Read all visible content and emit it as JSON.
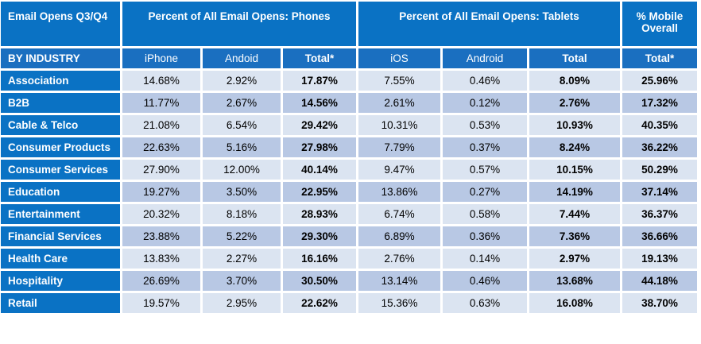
{
  "header": {
    "title": "Email Opens Q3/Q4",
    "phones_group": "Percent of All Email Opens: Phones",
    "tablets_group": "Percent of All Email Opens: Tablets",
    "mobile_overall_line1": "% Mobile",
    "mobile_overall_line2": "Overall"
  },
  "subheader": {
    "industry_label": "BY INDUSTRY",
    "iphone": "iPhone",
    "android_phone": "Andoid",
    "phones_total": "Total*",
    "ios": "iOS",
    "android_tablet": "Android",
    "tablets_total": "Total",
    "mobile_total": "Total*"
  },
  "rows": [
    {
      "industry": "Association",
      "iphone": "14.68%",
      "android_phone": "2.92%",
      "phones_total": "17.87%",
      "ios": "7.55%",
      "android_tablet": "0.46%",
      "tablets_total": "8.09%",
      "mobile_total": "25.96%"
    },
    {
      "industry": "B2B",
      "iphone": "11.77%",
      "android_phone": "2.67%",
      "phones_total": "14.56%",
      "ios": "2.61%",
      "android_tablet": "0.12%",
      "tablets_total": "2.76%",
      "mobile_total": "17.32%"
    },
    {
      "industry": "Cable & Telco",
      "iphone": "21.08%",
      "android_phone": "6.54%",
      "phones_total": "29.42%",
      "ios": "10.31%",
      "android_tablet": "0.53%",
      "tablets_total": "10.93%",
      "mobile_total": "40.35%"
    },
    {
      "industry": "Consumer Products",
      "iphone": "22.63%",
      "android_phone": "5.16%",
      "phones_total": "27.98%",
      "ios": "7.79%",
      "android_tablet": "0.37%",
      "tablets_total": "8.24%",
      "mobile_total": "36.22%"
    },
    {
      "industry": "Consumer Services",
      "iphone": "27.90%",
      "android_phone": "12.00%",
      "phones_total": "40.14%",
      "ios": "9.47%",
      "android_tablet": "0.57%",
      "tablets_total": "10.15%",
      "mobile_total": "50.29%"
    },
    {
      "industry": "Education",
      "iphone": "19.27%",
      "android_phone": "3.50%",
      "phones_total": "22.95%",
      "ios": "13.86%",
      "android_tablet": "0.27%",
      "tablets_total": "14.19%",
      "mobile_total": "37.14%"
    },
    {
      "industry": "Entertainment",
      "iphone": "20.32%",
      "android_phone": "8.18%",
      "phones_total": "28.93%",
      "ios": "6.74%",
      "android_tablet": "0.58%",
      "tablets_total": "7.44%",
      "mobile_total": "36.37%"
    },
    {
      "industry": "Financial Services",
      "iphone": "23.88%",
      "android_phone": "5.22%",
      "phones_total": "29.30%",
      "ios": "6.89%",
      "android_tablet": "0.36%",
      "tablets_total": "7.36%",
      "mobile_total": "36.66%"
    },
    {
      "industry": "Health Care",
      "iphone": "13.83%",
      "android_phone": "2.27%",
      "phones_total": "16.16%",
      "ios": "2.76%",
      "android_tablet": "0.14%",
      "tablets_total": "2.97%",
      "mobile_total": "19.13%"
    },
    {
      "industry": "Hospitality",
      "iphone": "26.69%",
      "android_phone": "3.70%",
      "phones_total": "30.50%",
      "ios": "13.14%",
      "android_tablet": "0.46%",
      "tablets_total": "13.68%",
      "mobile_total": "44.18%"
    },
    {
      "industry": "Retail",
      "iphone": "19.57%",
      "android_phone": "2.95%",
      "phones_total": "22.62%",
      "ios": "15.36%",
      "android_tablet": "0.63%",
      "tablets_total": "16.08%",
      "mobile_total": "38.70%"
    }
  ],
  "colors": {
    "header_blue": "#0a72c4",
    "subheader_blue": "#1a6fc0",
    "row_light": "#dbe4f1",
    "row_dark": "#b8c8e4"
  }
}
